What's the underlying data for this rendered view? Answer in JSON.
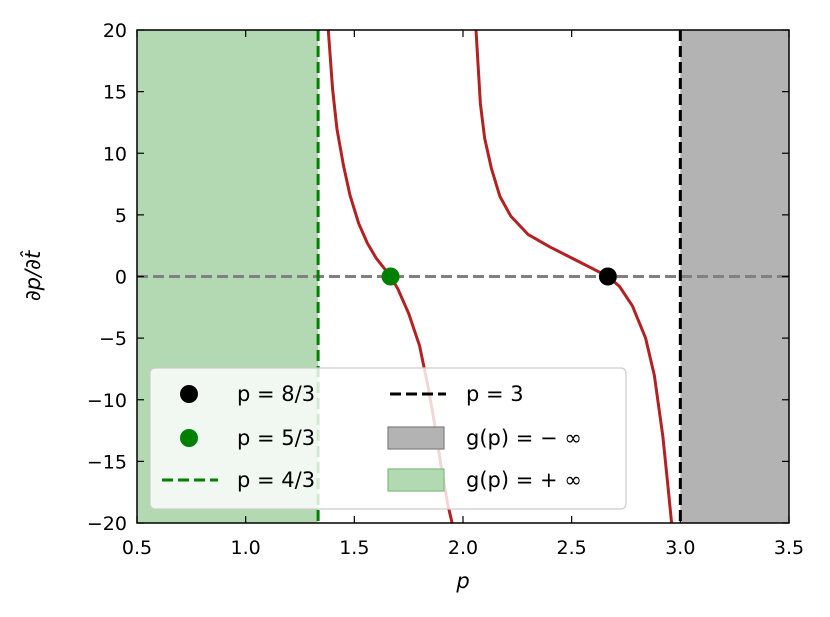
{
  "chart_data": {
    "type": "line",
    "xlabel": "p",
    "ylabel": "∂p/∂t̂",
    "xlim": [
      0.5,
      3.5
    ],
    "ylim": [
      -20,
      20
    ],
    "xticks": [
      "0.5",
      "1.0",
      "1.5",
      "2.0",
      "2.5",
      "3.0",
      "3.5"
    ],
    "xtick_values": [
      0.5,
      1.0,
      1.5,
      2.0,
      2.5,
      3.0,
      3.5
    ],
    "yticks": [
      "20",
      "15",
      "10",
      "5",
      "0",
      "−5",
      "−10",
      "−15",
      "−20"
    ],
    "ytick_values": [
      20,
      15,
      10,
      5,
      0,
      -5,
      -10,
      -15,
      -20
    ],
    "grid": false,
    "curve": {
      "color": "#b22222",
      "points": [
        [
          1.38,
          20
        ],
        [
          1.4,
          15.2
        ],
        [
          1.42,
          12.0
        ],
        [
          1.45,
          9.0
        ],
        [
          1.48,
          6.6
        ],
        [
          1.52,
          4.3
        ],
        [
          1.56,
          2.7
        ],
        [
          1.6,
          1.5
        ],
        [
          1.6667,
          0.0
        ],
        [
          1.7,
          -1.0
        ],
        [
          1.75,
          -3.0
        ],
        [
          1.8,
          -5.6
        ],
        [
          1.84,
          -9.0
        ],
        [
          1.87,
          -12.0
        ],
        [
          1.9,
          -15.5
        ],
        [
          1.93,
          -18.5
        ],
        [
          1.95,
          -20
        ],
        null,
        [
          2.06,
          20
        ],
        [
          2.08,
          14.0
        ],
        [
          2.1,
          11.2
        ],
        [
          2.13,
          8.8
        ],
        [
          2.17,
          6.5
        ],
        [
          2.22,
          4.9
        ],
        [
          2.3,
          3.4
        ],
        [
          2.4,
          2.4
        ],
        [
          2.5,
          1.5
        ],
        [
          2.6,
          0.6
        ],
        [
          2.6667,
          0.0
        ],
        [
          2.72,
          -0.8
        ],
        [
          2.78,
          -2.4
        ],
        [
          2.84,
          -5.0
        ],
        [
          2.88,
          -8.0
        ],
        [
          2.92,
          -13.0
        ],
        [
          2.94,
          -16.5
        ],
        [
          2.96,
          -20
        ]
      ]
    },
    "zero_line": {
      "y": 0,
      "color": "#808080"
    },
    "vlines": [
      {
        "x": 1.3333,
        "color": "#008000",
        "label": "p = 4/3"
      },
      {
        "x": 3.0,
        "color": "#000000",
        "label": "p = 3"
      }
    ],
    "spans": [
      {
        "x0": 0.5,
        "x1": 1.3333,
        "color": "#b3d9b3",
        "label": "g(p) = + ∞"
      },
      {
        "x0": 3.0,
        "x1": 3.5,
        "color": "#b3b3b3",
        "label": "g(p) = − ∞"
      }
    ],
    "points": [
      {
        "x": 2.6667,
        "y": 0,
        "color": "#000000",
        "label": "p = 8/3"
      },
      {
        "x": 1.6667,
        "y": 0,
        "color": "#008000",
        "label": "p = 5/3"
      }
    ],
    "legend": {
      "placement": "lower-left",
      "entries": [
        {
          "kind": "marker",
          "color": "#000000",
          "label": "p = 8/3"
        },
        {
          "kind": "marker",
          "color": "#008000",
          "label": "p = 5/3"
        },
        {
          "kind": "dash",
          "color": "#008000",
          "label": "p = 4/3"
        },
        {
          "kind": "dash",
          "color": "#000000",
          "label": "p = 3"
        },
        {
          "kind": "patch",
          "color": "#b3b3b3",
          "edge": "#808080",
          "label": "g(p) = − ∞"
        },
        {
          "kind": "patch",
          "color": "#b3d9b3",
          "edge": "#7fbf7f",
          "label": "g(p) = + ∞"
        }
      ]
    }
  }
}
